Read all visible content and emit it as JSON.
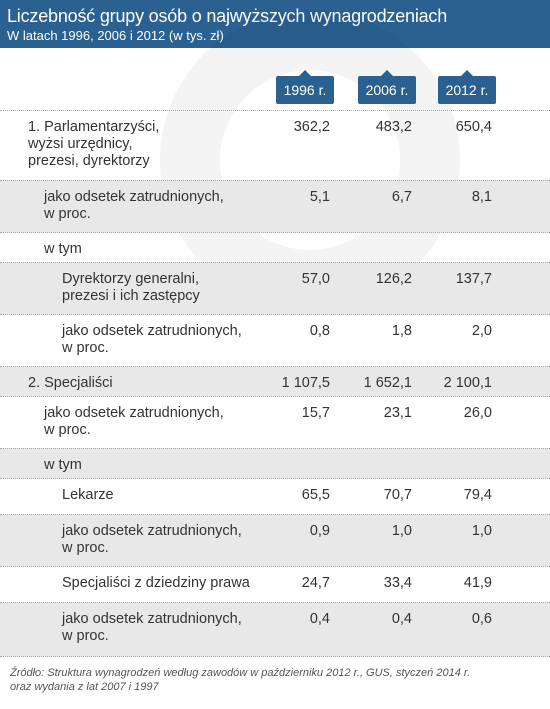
{
  "header": {
    "title": "Liczebność grupy osób o najwyższych wynagrodzeniach",
    "subtitle": "W latach 1996, 2006 i 2012 (w tys. zł)"
  },
  "columns": [
    "1996 r.",
    "2006 r.",
    "2012 r."
  ],
  "rows": [
    {
      "label": [
        "1. Parlamentarzyści,",
        "wyżsi urzędnicy,",
        "prezesi, dyrektorzy"
      ],
      "values": [
        "362,2",
        "483,2",
        "650,4"
      ]
    },
    {
      "label": [
        "jako odsetek zatrudnionych,",
        "w proc."
      ],
      "values": [
        "5,1",
        "6,7",
        "8,1"
      ]
    },
    {
      "label": [
        "w tym"
      ],
      "values": [
        "",
        "",
        ""
      ]
    },
    {
      "label": [
        "Dyrektorzy generalni,",
        "prezesi i ich zastępcy"
      ],
      "values": [
        "57,0",
        "126,2",
        "137,7"
      ]
    },
    {
      "label": [
        "jako odsetek zatrudnionych,",
        "w proc."
      ],
      "values": [
        "0,8",
        "1,8",
        "2,0"
      ]
    },
    {
      "label": [
        "2. Specjaliści"
      ],
      "values": [
        "1 107,5",
        "1 652,1",
        "2 100,1"
      ]
    },
    {
      "label": [
        "jako odsetek zatrudnionych,",
        "w proc."
      ],
      "values": [
        "15,7",
        "23,1",
        "26,0"
      ]
    },
    {
      "label": [
        "w tym"
      ],
      "values": [
        "",
        "",
        ""
      ]
    },
    {
      "label": [
        "Lekarze"
      ],
      "values": [
        "65,5",
        "70,7",
        "79,4"
      ]
    },
    {
      "label": [
        "jako odsetek zatrudnionych,",
        "w proc."
      ],
      "values": [
        "0,9",
        "1,0",
        "1,0"
      ]
    },
    {
      "label": [
        "Specjaliści z dziedziny prawa"
      ],
      "values": [
        "24,7",
        "33,4",
        "41,9"
      ]
    },
    {
      "label": [
        "jako odsetek zatrudnionych,",
        "w proc."
      ],
      "values": [
        "0,4",
        "0,4",
        "0,6"
      ]
    }
  ],
  "source": [
    "Źródło: Struktura wynagrodzeń według zawodów w październiku 2012 r., GUS, styczeń 2014 r.",
    "oraz wydania z lat 2007 i 1997"
  ],
  "colors": {
    "header": "#2a6191",
    "shade": "#e8e8e8"
  }
}
